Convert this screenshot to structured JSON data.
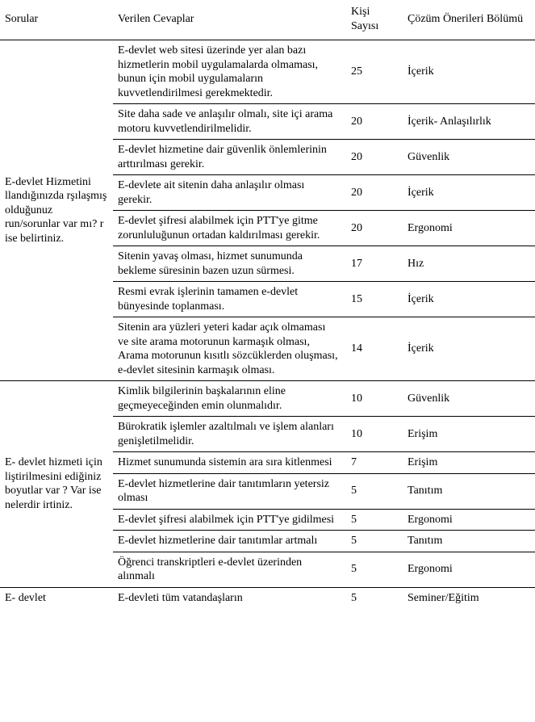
{
  "header": {
    "questions": "Sorular",
    "answers": "Verilen Cevaplar",
    "count": "Kişi Sayısı",
    "dimension": "Çözüm Önerileri Bölümü"
  },
  "q1_text": " E-devlet Hizmetini llandığınızda rşılaşmış olduğunuz run/sorunlar var mı? r ise belirtiniz.",
  "q2_text": " E- devlet hizmeti için liştirilmesini ediğiniz boyutlar var ? Var ise nelerdir irtiniz.",
  "q3_text": " E- devlet",
  "rows": [
    {
      "a": "E-devlet web sitesi üzerinde yer alan bazı hizmetlerin mobil uygulamalarda olmaması, bunun için mobil uygulamaların kuvvetlendirilmesi gerekmektedir.",
      "n": "25",
      "d": "İçerik"
    },
    {
      "a": "Site daha sade ve anlaşılır olmalı, site içi arama motoru kuvvetlendirilmelidir.",
      "n": "20",
      "d": "İçerik- Anlaşılırlık"
    },
    {
      "a": "E-devlet hizmetine dair güvenlik önlemlerinin arttırılması gerekir.",
      "n": "20",
      "d": "Güvenlik"
    },
    {
      "a": "E-devlete ait sitenin daha anlaşılır olması gerekir.",
      "n": "20",
      "d": "İçerik"
    },
    {
      "a": "E-devlet şifresi alabilmek için PTT'ye gitme zorunluluğunun ortadan kaldırılması gerekir.",
      "n": "20",
      "d": "Ergonomi"
    },
    {
      "a": "Sitenin yavaş olması, hizmet sunumunda bekleme süresinin bazen uzun sürmesi.",
      "n": "17",
      "d": "Hız"
    },
    {
      "a": "Resmi evrak işlerinin tamamen e-devlet bünyesinde toplanması.",
      "n": "15",
      "d": "İçerik"
    },
    {
      "a": "Sitenin ara yüzleri yeteri kadar açık olmaması ve site arama motorunun karmaşık olması, Arama motorunun kısıtlı sözcüklerden oluşması, e-devlet sitesinin karmaşık olması.",
      "n": "14",
      "d": "İçerik"
    },
    {
      "a": "Kimlik bilgilerinin başkalarının eline geçmeyeceğinden emin olunmalıdır.",
      "n": "10",
      "d": "Güvenlik"
    },
    {
      "a": "Bürokratik işlemler azaltılmalı ve işlem alanları genişletilmelidir.",
      "n": "10",
      "d": "Erişim"
    },
    {
      "a": "Hizmet sunumunda sistemin ara sıra kitlenmesi",
      "n": "7",
      "d": "Erişim"
    },
    {
      "a": "E-devlet hizmetlerine dair tanıtımların yetersiz olması",
      "n": "5",
      "d": "Tanıtım"
    },
    {
      "a": "E-devlet şifresi alabilmek için PTT'ye gidilmesi",
      "n": "5",
      "d": "Ergonomi"
    },
    {
      "a": "E-devlet hizmetlerine dair tanıtımlar artmalı",
      "n": "5",
      "d": "Tanıtım"
    },
    {
      "a": "Öğrenci transkriptleri e-devlet üzerinden alınmalı",
      "n": "5",
      "d": "Ergonomi"
    }
  ],
  "last": {
    "a": "E-devleti tüm vatandaşların",
    "n": "5",
    "d": "Seminer/Eğitim"
  }
}
